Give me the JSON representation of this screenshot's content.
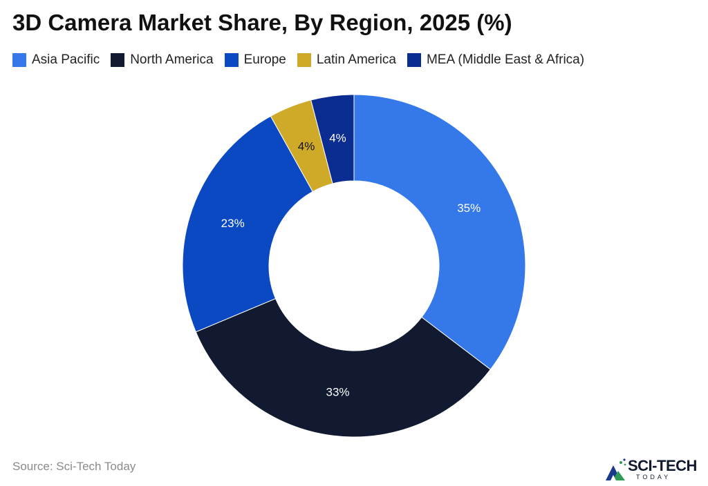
{
  "title": "3D Camera Market Share, By Region, 2025 (%)",
  "source": "Source: Sci-Tech Today",
  "brand": {
    "name": "SCI-TECH",
    "sub": "TODAY",
    "logo_icon": "mountain-logo-icon"
  },
  "legend": [
    {
      "label": "Asia Pacific",
      "color": "#3478ea"
    },
    {
      "label": "North America",
      "color": "#111a31"
    },
    {
      "label": "Europe",
      "color": "#0b49c2"
    },
    {
      "label": "Latin America",
      "color": "#cfa928"
    },
    {
      "label": "MEA (Middle East & Africa)",
      "color": "#0b2d91"
    }
  ],
  "chart_data": {
    "type": "pie",
    "title": "3D Camera Market Share, By Region, 2025 (%)",
    "donut": true,
    "legend_position": "top-left",
    "categories": [
      "Asia Pacific",
      "North America",
      "Europe",
      "Latin America",
      "MEA (Middle East & Africa)"
    ],
    "values": [
      35,
      33,
      23,
      4,
      4
    ],
    "data_labels": [
      "35%",
      "33%",
      "23%",
      "4%",
      "4%"
    ],
    "colors": [
      "#3478ea",
      "#111a31",
      "#0b49c2",
      "#cfa928",
      "#0b2d91"
    ],
    "label_colors": [
      "#ffffff",
      "#ffffff",
      "#ffffff",
      "#111111",
      "#ffffff"
    ]
  }
}
